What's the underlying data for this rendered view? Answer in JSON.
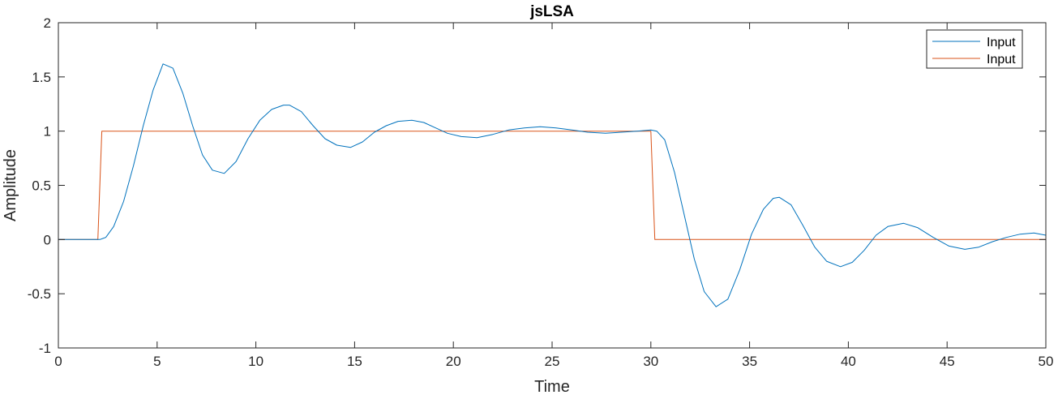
{
  "chart_data": {
    "type": "line",
    "title": "jsLSA",
    "xlabel": "Time",
    "ylabel": "Amplitude",
    "xlim": [
      0,
      50
    ],
    "ylim": [
      -1,
      2
    ],
    "xticks": [
      0,
      5,
      10,
      15,
      20,
      25,
      30,
      35,
      40,
      45,
      50
    ],
    "yticks": [
      -1,
      -0.5,
      0,
      0.5,
      1,
      1.5,
      2
    ],
    "xtick_labels": [
      "0",
      "5",
      "10",
      "15",
      "20",
      "25",
      "30",
      "35",
      "40",
      "45",
      "50"
    ],
    "ytick_labels": [
      "-1",
      "-0.5",
      "0",
      "0.5",
      "1",
      "1.5",
      "2"
    ],
    "grid": false,
    "legend_position": "top-right",
    "series": [
      {
        "name": "Input",
        "color": "#0072BD",
        "x": [
          0,
          2,
          2.1,
          2.4,
          2.8,
          3.3,
          3.8,
          4.3,
          4.8,
          5.3,
          5.8,
          6.3,
          6.8,
          7.3,
          7.8,
          8.4,
          9.0,
          9.6,
          10.2,
          10.8,
          11.4,
          11.7,
          12.3,
          12.9,
          13.5,
          14.1,
          14.8,
          15.4,
          16.0,
          16.6,
          17.2,
          17.9,
          18.5,
          19.1,
          19.7,
          20.4,
          21.2,
          22.0,
          22.8,
          23.6,
          24.4,
          25.2,
          26.0,
          26.8,
          27.7,
          28.5,
          29.3,
          30.0,
          30.3,
          30.7,
          31.2,
          31.7,
          32.2,
          32.7,
          33.3,
          33.9,
          34.5,
          35.1,
          35.7,
          36.2,
          36.5,
          37.1,
          37.7,
          38.3,
          38.9,
          39.6,
          40.2,
          40.8,
          41.4,
          42.0,
          42.8,
          43.5,
          44.3,
          45.1,
          45.9,
          46.6,
          47.3,
          48.0,
          48.7,
          49.4,
          50.0
        ],
        "y": [
          0,
          0,
          0.0,
          0.02,
          0.12,
          0.35,
          0.68,
          1.05,
          1.38,
          1.62,
          1.58,
          1.35,
          1.05,
          0.78,
          0.64,
          0.61,
          0.72,
          0.93,
          1.1,
          1.2,
          1.24,
          1.24,
          1.18,
          1.05,
          0.93,
          0.87,
          0.85,
          0.9,
          0.99,
          1.05,
          1.09,
          1.1,
          1.08,
          1.03,
          0.98,
          0.95,
          0.94,
          0.97,
          1.01,
          1.03,
          1.04,
          1.03,
          1.01,
          0.99,
          0.98,
          0.99,
          1.0,
          1.01,
          1.0,
          0.92,
          0.62,
          0.22,
          -0.18,
          -0.48,
          -0.62,
          -0.55,
          -0.28,
          0.05,
          0.28,
          0.38,
          0.39,
          0.32,
          0.13,
          -0.07,
          -0.2,
          -0.25,
          -0.21,
          -0.1,
          0.04,
          0.12,
          0.15,
          0.11,
          0.02,
          -0.06,
          -0.09,
          -0.07,
          -0.02,
          0.02,
          0.05,
          0.06,
          0.04
        ]
      },
      {
        "name": "Input",
        "color": "#D95319",
        "x": [
          0,
          2,
          2.2,
          30,
          30.2,
          50
        ],
        "y": [
          0,
          0,
          1,
          1,
          0,
          0
        ]
      }
    ]
  }
}
